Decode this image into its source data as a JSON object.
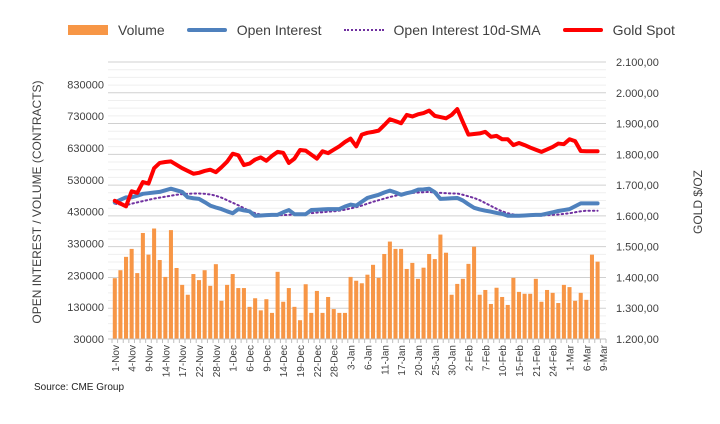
{
  "chart_data": {
    "type": "bar+line",
    "title": "",
    "source": "Source: CME Group",
    "ylabel_left": "OPEN INTEREST / VOLUME (CONTRACTS)",
    "ylabel_right": "GOLD $/OZ",
    "ylim_left": [
      30000,
      900000
    ],
    "ylim_right": [
      1200,
      2100
    ],
    "left_ticks": [
      "30000",
      "130000",
      "230000",
      "330000",
      "430000",
      "530000",
      "630000",
      "730000",
      "830000"
    ],
    "left_tick_values": [
      30000,
      130000,
      230000,
      330000,
      430000,
      530000,
      630000,
      730000,
      830000
    ],
    "right_ticks": [
      "1.200,00",
      "1.300,00",
      "1.400,00",
      "1.500,00",
      "1.600,00",
      "1.700,00",
      "1.800,00",
      "1.900,00",
      "2.000,00",
      "2.100,00"
    ],
    "right_tick_values": [
      1200,
      1300,
      1400,
      1500,
      1600,
      1700,
      1800,
      1900,
      2000,
      2100
    ],
    "x_tick_labels": [
      "1-Nov",
      "4-Nov",
      "9-Nov",
      "14-Nov",
      "17-Nov",
      "22-Nov",
      "28-Nov",
      "1-Dec",
      "6-Dec",
      "9-Dec",
      "14-Dec",
      "19-Dec",
      "22-Dec",
      "28-Dec",
      "3-Jan",
      "6-Jan",
      "11-Jan",
      "17-Jan",
      "20-Jan",
      "25-Jan",
      "30-Jan",
      "2-Feb",
      "7-Feb",
      "10-Feb",
      "15-Feb",
      "21-Feb",
      "24-Feb",
      "1-Mar",
      "6-Mar",
      "9-Mar"
    ],
    "x_tick_step": 3,
    "n_points": 87,
    "grid": true,
    "legend_position": "top",
    "legend": [
      "Volume",
      "Open Interest",
      "Open Interest 10d-SMA",
      "Gold Spot"
    ],
    "colors": {
      "volume": "#F79646",
      "open_interest": "#4F81BD",
      "sma": "#7030A0",
      "gold": "#FF0000",
      "grid": "#D9D9D9"
    },
    "series": [
      {
        "name": "Volume",
        "axis": "left",
        "type": "bar",
        "values": [
          221000,
          246000,
          288000,
          313000,
          237000,
          363000,
          295000,
          377000,
          278000,
          225000,
          372000,
          253000,
          200000,
          169000,
          234000,
          215000,
          246000,
          197000,
          265000,
          150000,
          200000,
          234000,
          190000,
          190000,
          131000,
          158000,
          120000,
          155000,
          112000,
          241000,
          147000,
          190000,
          131000,
          89000,
          202000,
          112000,
          181000,
          112000,
          162000,
          124000,
          112000,
          112000,
          225000,
          213000,
          205000,
          232000,
          263000,
          222000,
          297000,
          336000,
          313000,
          313000,
          250000,
          269000,
          219000,
          254000,
          297000,
          281000,
          358000,
          301000,
          169000,
          203000,
          219000,
          266000,
          320000,
          169000,
          184000,
          140000,
          191000,
          162000,
          137000,
          222000,
          178000,
          172000,
          172000,
          219000,
          147000,
          184000,
          175000,
          143000,
          200000,
          193000,
          150000,
          175000,
          153000,
          295000,
          273000
        ]
      },
      {
        "name": "Open Interest",
        "axis": "left",
        "type": "line",
        "values": [
          459000,
          467000,
          475000,
          475000,
          480000,
          486000,
          488000,
          490000,
          492000,
          497000,
          502000,
          497000,
          492000,
          475000,
          472000,
          470000,
          460000,
          449000,
          443000,
          438000,
          431000,
          425000,
          438000,
          434000,
          431000,
          417000,
          418000,
          419000,
          420000,
          420000,
          428000,
          435000,
          422000,
          422000,
          422000,
          435000,
          436000,
          437000,
          438000,
          438000,
          438000,
          446000,
          452000,
          449000,
          461000,
          473000,
          478000,
          483000,
          490000,
          496000,
          490000,
          483000,
          488000,
          492000,
          499000,
          500000,
          502000,
          491000,
          470000,
          471000,
          472000,
          473000,
          465000,
          453000,
          442000,
          437000,
          433000,
          430000,
          426000,
          423000,
          417000,
          417000,
          417000,
          418000,
          419000,
          420000,
          420000,
          424000,
          428000,
          432000,
          435000,
          438000,
          447000,
          456000,
          456000,
          456000,
          456000
        ]
      },
      {
        "name": "Open Interest 10d-SMA",
        "axis": "left",
        "type": "line",
        "values": [
          455000,
          452000,
          450000,
          455000,
          459000,
          463000,
          467000,
          471000,
          474000,
          477000,
          480000,
          483000,
          485000,
          486000,
          487000,
          487000,
          486000,
          484000,
          480000,
          474000,
          466000,
          458000,
          450000,
          441000,
          432000,
          425000,
          421000,
          420000,
          419000,
          419000,
          419000,
          420000,
          421000,
          422000,
          424000,
          425000,
          427000,
          428000,
          430000,
          431000,
          433000,
          436000,
          440000,
          444000,
          449000,
          455000,
          461000,
          466000,
          471000,
          476000,
          480000,
          484000,
          487000,
          489000,
          490000,
          491000,
          492000,
          490000,
          489000,
          488000,
          487000,
          487000,
          483000,
          478000,
          473000,
          466000,
          457000,
          448000,
          439000,
          431000,
          425000,
          421000,
          419000,
          418000,
          418000,
          418000,
          418000,
          419000,
          420000,
          421000,
          423000,
          425000,
          428000,
          431000,
          433000,
          433000,
          433000
        ]
      },
      {
        "name": "Gold Spot",
        "axis": "right",
        "type": "line",
        "values": [
          1649,
          1640,
          1631,
          1680,
          1675,
          1710,
          1705,
          1755,
          1772,
          1775,
          1777,
          1766,
          1755,
          1746,
          1737,
          1740,
          1746,
          1750,
          1742,
          1758,
          1776,
          1802,
          1797,
          1765,
          1770,
          1783,
          1790,
          1779,
          1795,
          1808,
          1805,
          1772,
          1786,
          1814,
          1812,
          1799,
          1786,
          1810,
          1804,
          1815,
          1826,
          1840,
          1851,
          1826,
          1864,
          1870,
          1873,
          1877,
          1895,
          1914,
          1908,
          1901,
          1928,
          1923,
          1930,
          1934,
          1942,
          1925,
          1921,
          1917,
          1928,
          1947,
          1905,
          1864,
          1866,
          1868,
          1873,
          1857,
          1860,
          1849,
          1849,
          1830,
          1837,
          1830,
          1822,
          1815,
          1808,
          1816,
          1824,
          1835,
          1833,
          1849,
          1843,
          1811,
          1810,
          1810,
          1810
        ]
      }
    ]
  }
}
